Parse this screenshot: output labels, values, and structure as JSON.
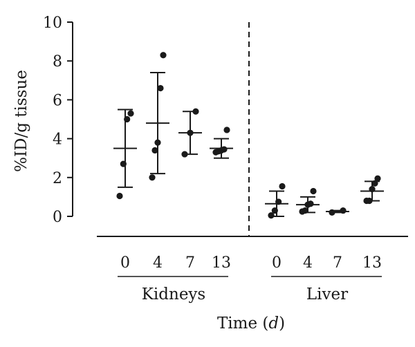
{
  "chart_data": {
    "type": "scatter",
    "ylabel": "%ID/g tissue",
    "xlabel_prefix": "Time (",
    "xlabel_unit": "d",
    "xlabel_suffix": ")",
    "ylim": [
      0,
      10
    ],
    "yticks": [
      0,
      2,
      4,
      6,
      8,
      10
    ],
    "divider": "dashed",
    "groups": [
      {
        "name": "Kidneys",
        "categories": [
          {
            "label": "0",
            "mean": 3.5,
            "sd": 2.0,
            "points": [
              1.05,
              2.7,
              5.0,
              5.3
            ]
          },
          {
            "label": "4",
            "mean": 4.8,
            "sd": 2.6,
            "points": [
              2.0,
              3.4,
              3.8,
              6.6,
              8.3
            ]
          },
          {
            "label": "7",
            "mean": 4.3,
            "sd": 1.1,
            "points": [
              3.2,
              4.3,
              5.4
            ]
          },
          {
            "label": "13",
            "mean": 3.5,
            "sd": 0.5,
            "points": [
              3.3,
              3.35,
              3.4,
              3.45,
              4.45
            ]
          }
        ]
      },
      {
        "name": "Liver",
        "categories": [
          {
            "label": "0",
            "mean": 0.65,
            "sd": 0.65,
            "points": [
              0.05,
              0.3,
              0.75,
              1.55
            ]
          },
          {
            "label": "4",
            "mean": 0.6,
            "sd": 0.4,
            "points": [
              0.25,
              0.3,
              0.6,
              0.65,
              1.3
            ]
          },
          {
            "label": "7",
            "mean": 0.25,
            "sd": 0.05,
            "points": [
              0.2,
              0.3
            ]
          },
          {
            "label": "13",
            "mean": 1.3,
            "sd": 0.5,
            "points": [
              0.8,
              0.8,
              1.4,
              1.7,
              1.95
            ]
          }
        ]
      }
    ]
  }
}
